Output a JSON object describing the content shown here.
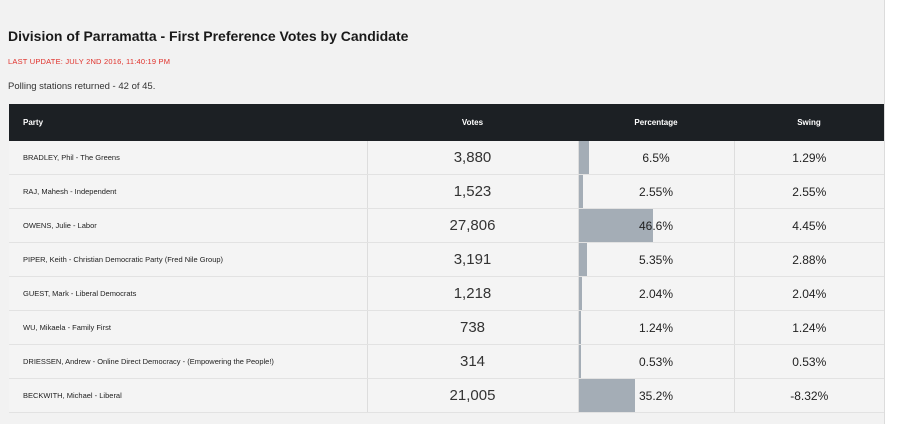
{
  "title": "Division of Parramatta - First Preference Votes by Candidate",
  "last_update": "LAST UPDATE: JULY 2ND 2016, 11:40:19 PM",
  "polling": "Polling stations returned - 42 of 45.",
  "colors": {
    "header_bg": "#1c2024",
    "update_text": "#e0302a",
    "bar_fill": "#a4adb6"
  },
  "table": {
    "headers": {
      "party": "Party",
      "votes": "Votes",
      "percentage": "Percentage",
      "swing": "Swing"
    },
    "rows": [
      {
        "party": "BRADLEY, Phil - The Greens",
        "votes": "3,880",
        "percentage": "6.5%",
        "pct_value": 6.5,
        "swing": "1.29%"
      },
      {
        "party": "RAJ, Mahesh - Independent",
        "votes": "1,523",
        "percentage": "2.55%",
        "pct_value": 2.55,
        "swing": "2.55%"
      },
      {
        "party": "OWENS, Julie - Labor",
        "votes": "27,806",
        "percentage": "46.6%",
        "pct_value": 46.6,
        "swing": "4.45%"
      },
      {
        "party": "PIPER, Keith - Christian Democratic Party (Fred Nile Group)",
        "votes": "3,191",
        "percentage": "5.35%",
        "pct_value": 5.35,
        "swing": "2.88%"
      },
      {
        "party": "GUEST, Mark - Liberal Democrats",
        "votes": "1,218",
        "percentage": "2.04%",
        "pct_value": 2.04,
        "swing": "2.04%"
      },
      {
        "party": "WU, Mikaela - Family First",
        "votes": "738",
        "percentage": "1.24%",
        "pct_value": 1.24,
        "swing": "1.24%"
      },
      {
        "party": "DRIESSEN, Andrew - Online Direct Democracy - (Empowering the People!)",
        "votes": "314",
        "percentage": "0.53%",
        "pct_value": 0.53,
        "swing": "0.53%"
      },
      {
        "party": "BECKWITH, Michael - Liberal",
        "votes": "21,005",
        "percentage": "35.2%",
        "pct_value": 35.2,
        "swing": "-8.32%"
      }
    ]
  }
}
